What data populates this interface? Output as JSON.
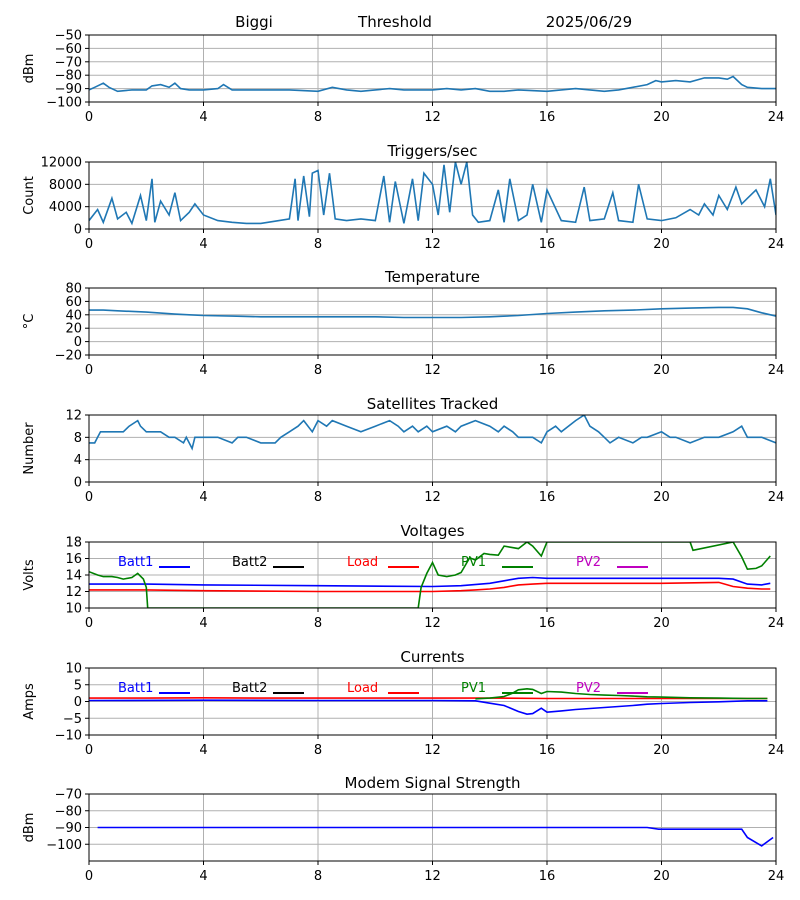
{
  "header": {
    "site": "Biggi",
    "mode": "Threshold",
    "date": "2025/06/29"
  },
  "colors": {
    "series": "#1f77b4",
    "grid": "#b0b0b0",
    "batt1": "#0000ff",
    "batt2": "#000000",
    "load": "#ff0000",
    "pv1": "#008000",
    "pv2": "#bf00bf"
  },
  "chart_data": [
    {
      "type": "line",
      "title": "",
      "xlabel": "",
      "ylabel": "dBm",
      "xlim": [
        0,
        24
      ],
      "ylim": [
        -100,
        -50
      ],
      "xticks": [
        "0",
        "4",
        "8",
        "12",
        "16",
        "20",
        "24"
      ],
      "yticks": [
        -100,
        -90,
        -80,
        -70,
        -60,
        -50
      ],
      "grid": true,
      "series": [
        {
          "color": "#1f77b4",
          "x": [
            0,
            0.2,
            0.5,
            0.7,
            1,
            1.5,
            2,
            2.2,
            2.5,
            2.8,
            3,
            3.2,
            3.5,
            4,
            4.5,
            4.7,
            5,
            6,
            7,
            8,
            8.5,
            9,
            9.5,
            10,
            10.5,
            11,
            12,
            12.5,
            13,
            13.5,
            14,
            14.5,
            15,
            16,
            17,
            17.5,
            18,
            18.5,
            19,
            19.5,
            19.8,
            20,
            20.5,
            21,
            21.5,
            22,
            22.3,
            22.5,
            22.8,
            23,
            23.5,
            24
          ],
          "y": [
            -91,
            -89,
            -86,
            -89,
            -92,
            -91,
            -91,
            -88,
            -87,
            -89,
            -86,
            -90,
            -91,
            -91,
            -90,
            -87,
            -91,
            -91,
            -91,
            -92,
            -89,
            -91,
            -92,
            -91,
            -90,
            -91,
            -91,
            -90,
            -91,
            -90,
            -92,
            -92,
            -91,
            -92,
            -90,
            -91,
            -92,
            -91,
            -89,
            -87,
            -84,
            -85,
            -84,
            -85,
            -82,
            -82,
            -83,
            -81,
            -87,
            -89,
            -90,
            -90
          ]
        }
      ]
    },
    {
      "type": "line",
      "title": "Triggers/sec",
      "xlabel": "",
      "ylabel": "Count",
      "xlim": [
        0,
        24
      ],
      "ylim": [
        0,
        12000
      ],
      "xticks": [
        "0",
        "4",
        "8",
        "12",
        "16",
        "20",
        "24"
      ],
      "yticks": [
        0,
        4000,
        8000,
        12000
      ],
      "grid": true,
      "series": [
        {
          "color": "#1f77b4",
          "x": [
            0,
            0.3,
            0.5,
            0.8,
            1,
            1.3,
            1.5,
            1.8,
            2,
            2.2,
            2.3,
            2.5,
            2.8,
            3,
            3.2,
            3.5,
            3.7,
            4,
            4.5,
            5,
            5.5,
            6,
            6.5,
            7,
            7.2,
            7.3,
            7.5,
            7.7,
            7.8,
            8,
            8.2,
            8.4,
            8.6,
            9,
            9.5,
            10,
            10.3,
            10.5,
            10.7,
            11,
            11.3,
            11.5,
            11.7,
            12,
            12.2,
            12.4,
            12.6,
            12.8,
            13,
            13.2,
            13.4,
            13.6,
            14,
            14.3,
            14.5,
            14.7,
            15,
            15.3,
            15.5,
            15.8,
            16,
            16.5,
            17,
            17.3,
            17.5,
            18,
            18.3,
            18.5,
            19,
            19.2,
            19.5,
            20,
            20.5,
            21,
            21.3,
            21.5,
            21.8,
            22,
            22.3,
            22.6,
            22.8,
            23,
            23.3,
            23.6,
            23.8,
            24
          ],
          "y": [
            1500,
            3500,
            1200,
            5500,
            1800,
            3000,
            1000,
            6000,
            1500,
            9000,
            1200,
            5000,
            2500,
            6500,
            1500,
            3000,
            4500,
            2500,
            1500,
            1200,
            1000,
            1000,
            1400,
            1800,
            9000,
            1500,
            9500,
            2200,
            10000,
            10500,
            2500,
            10000,
            1800,
            1500,
            1800,
            1500,
            9500,
            1200,
            8500,
            1000,
            9000,
            1500,
            10000,
            8000,
            2500,
            11500,
            3000,
            12000,
            8000,
            12000,
            2500,
            1200,
            1500,
            7000,
            1200,
            9000,
            1500,
            2500,
            8000,
            1200,
            7000,
            1500,
            1200,
            7500,
            1500,
            1800,
            6500,
            1500,
            1200,
            8000,
            1800,
            1500,
            2000,
            3500,
            2500,
            4500,
            2500,
            6000,
            3500,
            7500,
            4500,
            5500,
            7000,
            4000,
            9000,
            2500
          ]
        }
      ]
    },
    {
      "type": "line",
      "title": "Temperature",
      "xlabel": "",
      "ylabel": "°C",
      "xlim": [
        0,
        24
      ],
      "ylim": [
        -20,
        80
      ],
      "xticks": [
        "0",
        "4",
        "8",
        "12",
        "16",
        "20",
        "24"
      ],
      "yticks": [
        -20,
        0,
        20,
        40,
        60,
        80
      ],
      "grid": true,
      "series": [
        {
          "color": "#1f77b4",
          "x": [
            0,
            0.5,
            1,
            2,
            3,
            3.5,
            4,
            5,
            6,
            8,
            10,
            11,
            12,
            13,
            14,
            15,
            16,
            17,
            18,
            19,
            20,
            21,
            22,
            22.5,
            23,
            23.5,
            24
          ],
          "y": [
            47,
            47,
            46,
            44,
            41,
            40,
            39,
            38,
            37,
            37,
            37,
            36,
            36,
            36,
            37,
            39,
            42,
            44,
            46,
            47,
            49,
            50,
            51,
            51,
            49,
            43,
            38
          ]
        }
      ]
    },
    {
      "type": "line",
      "title": "Satellites Tracked",
      "xlabel": "",
      "ylabel": "Number",
      "xlim": [
        0,
        24
      ],
      "ylim": [
        0,
        12
      ],
      "xticks": [
        "0",
        "4",
        "8",
        "12",
        "16",
        "20",
        "24"
      ],
      "yticks": [
        0,
        4,
        8,
        12
      ],
      "grid": true,
      "series": [
        {
          "color": "#1f77b4",
          "x": [
            0,
            0.2,
            0.3,
            0.4,
            1.2,
            1.4,
            1.7,
            1.8,
            2,
            2.5,
            2.8,
            3,
            3.3,
            3.4,
            3.5,
            3.6,
            3.7,
            4.5,
            5,
            5.2,
            5.5,
            6,
            6.5,
            6.7,
            7,
            7.3,
            7.5,
            7.8,
            8,
            8.3,
            8.5,
            9,
            9.5,
            10,
            10.5,
            10.8,
            11,
            11.3,
            11.5,
            11.8,
            12,
            12.5,
            12.8,
            13,
            13.5,
            14,
            14.3,
            14.5,
            14.8,
            15,
            15.5,
            15.8,
            16,
            16.3,
            16.5,
            17,
            17.3,
            17.5,
            17.8,
            18,
            18.2,
            18.5,
            19,
            19.3,
            19.5,
            20,
            20.3,
            20.5,
            21,
            21.5,
            22,
            22.5,
            22.8,
            23,
            23.5,
            24
          ],
          "y": [
            7,
            7,
            8,
            9,
            9,
            10,
            11,
            10,
            9,
            9,
            8,
            8,
            7,
            8,
            7,
            6,
            8,
            8,
            7,
            8,
            8,
            7,
            7,
            8,
            9,
            10,
            11,
            9,
            11,
            10,
            11,
            10,
            9,
            10,
            11,
            10,
            9,
            10,
            9,
            10,
            9,
            10,
            9,
            10,
            11,
            10,
            9,
            10,
            9,
            8,
            8,
            7,
            9,
            10,
            9,
            11,
            12,
            10,
            9,
            8,
            7,
            8,
            7,
            8,
            8,
            9,
            8,
            8,
            7,
            8,
            8,
            9,
            10,
            8,
            8,
            7
          ]
        }
      ]
    },
    {
      "type": "line",
      "title": "Voltages",
      "xlabel": "",
      "ylabel": "Volts",
      "xlim": [
        0,
        24
      ],
      "ylim": [
        10,
        18
      ],
      "xticks": [
        "0",
        "4",
        "8",
        "12",
        "16",
        "20",
        "24"
      ],
      "yticks": [
        10,
        12,
        14,
        16,
        18
      ],
      "grid": true,
      "legend": "top",
      "series": [
        {
          "name": "Batt1",
          "color": "#0000ff",
          "x": [
            0,
            2,
            4,
            8,
            12,
            13,
            14,
            14.5,
            15,
            15.5,
            16,
            18,
            20,
            22,
            22.5,
            23,
            23.5,
            23.8
          ],
          "y": [
            12.9,
            12.9,
            12.8,
            12.7,
            12.6,
            12.7,
            13.0,
            13.3,
            13.6,
            13.7,
            13.6,
            13.6,
            13.6,
            13.6,
            13.5,
            12.9,
            12.8,
            13.0
          ]
        },
        {
          "name": "Batt2",
          "color": "#000000",
          "x": [],
          "y": []
        },
        {
          "name": "Load",
          "color": "#ff0000",
          "x": [
            0,
            2,
            4,
            8,
            12,
            13,
            13.5,
            14,
            14.5,
            15,
            15.5,
            16,
            18,
            20,
            22,
            22.5,
            23,
            23.5,
            23.8
          ],
          "y": [
            12.2,
            12.2,
            12.1,
            12.0,
            12.0,
            12.1,
            12.2,
            12.3,
            12.5,
            12.8,
            12.9,
            13.0,
            13.0,
            13.0,
            13.1,
            12.6,
            12.4,
            12.3,
            12.3
          ]
        },
        {
          "name": "PV1",
          "color": "#008000",
          "x": [
            0,
            0.3,
            0.5,
            0.8,
            1,
            1.2,
            1.5,
            1.7,
            1.9,
            2.0,
            2.05,
            11.5,
            11.6,
            11.8,
            12,
            12.2,
            12.5,
            12.8,
            13,
            13.3,
            13.5,
            13.8,
            14,
            14.3,
            14.5,
            15,
            15.3,
            15.5,
            15.8,
            16,
            21,
            21.1,
            22.5,
            22.8,
            23,
            23.3,
            23.5,
            23.8
          ],
          "y": [
            14.4,
            14.0,
            13.8,
            13.8,
            13.7,
            13.5,
            13.7,
            14.2,
            13.5,
            12.5,
            10,
            10,
            12.5,
            14.2,
            15.5,
            14.0,
            13.8,
            14.0,
            14.3,
            16.1,
            15.8,
            16.6,
            16.5,
            16.4,
            17.5,
            17.2,
            18,
            17.5,
            16.3,
            18,
            18,
            17,
            18,
            16.2,
            14.7,
            14.8,
            15.1,
            16.3
          ]
        },
        {
          "name": "PV2",
          "color": "#bf00bf",
          "x": [],
          "y": []
        }
      ]
    },
    {
      "type": "line",
      "title": "Currents",
      "xlabel": "",
      "ylabel": "Amps",
      "xlim": [
        0,
        24
      ],
      "ylim": [
        -10,
        10
      ],
      "xticks": [
        "0",
        "4",
        "8",
        "12",
        "16",
        "20",
        "24"
      ],
      "yticks": [
        -10,
        -5,
        0,
        5,
        10
      ],
      "grid": true,
      "legend": "top",
      "series": [
        {
          "name": "Batt1",
          "color": "#0000ff",
          "x": [
            0,
            4,
            8,
            12,
            13.5,
            14,
            14.5,
            15,
            15.3,
            15.5,
            15.8,
            16,
            16.5,
            17,
            17.5,
            18,
            19,
            19.5,
            20,
            21,
            22,
            23,
            23.7
          ],
          "y": [
            0.3,
            0.4,
            0.3,
            0.3,
            0.2,
            -0.5,
            -1.2,
            -3.0,
            -3.8,
            -3.6,
            -2.0,
            -3.2,
            -2.8,
            -2.4,
            -2.1,
            -1.8,
            -1.2,
            -0.8,
            -0.6,
            -0.3,
            -0.1,
            0.2,
            0.2
          ]
        },
        {
          "name": "Batt2",
          "color": "#000000",
          "x": [],
          "y": []
        },
        {
          "name": "Load",
          "color": "#ff0000",
          "x": [
            0,
            2,
            4,
            6,
            8,
            10,
            12,
            14,
            16,
            18,
            20,
            22,
            23.7
          ],
          "y": [
            1.0,
            1.0,
            1.1,
            1.0,
            1.0,
            1.0,
            1.0,
            1.0,
            0.9,
            0.9,
            0.9,
            0.9,
            0.9
          ]
        },
        {
          "name": "PV1",
          "color": "#008000",
          "x": [
            13.5,
            14,
            14.5,
            14.8,
            15,
            15.3,
            15.5,
            15.8,
            16,
            16.5,
            17,
            17.5,
            18,
            18.5,
            19,
            19.5,
            20,
            21,
            22,
            23,
            23.7
          ],
          "y": [
            0.8,
            1.0,
            1.5,
            2.5,
            3.5,
            3.8,
            3.6,
            2.4,
            3.0,
            2.8,
            2.4,
            2.1,
            1.9,
            1.8,
            1.6,
            1.4,
            1.3,
            1.1,
            1.0,
            0.9,
            0.9
          ]
        },
        {
          "name": "PV2",
          "color": "#bf00bf",
          "x": [],
          "y": []
        }
      ]
    },
    {
      "type": "line",
      "title": "Modem Signal Strength",
      "xlabel": "",
      "ylabel": "dBm",
      "xlim": [
        0,
        24
      ],
      "ylim": [
        -110,
        -70
      ],
      "xticks": [
        "0",
        "4",
        "8",
        "12",
        "16",
        "20",
        "24"
      ],
      "yticks": [
        -100,
        -90,
        -80,
        -70
      ],
      "grid": true,
      "series": [
        {
          "color": "#0000ff",
          "x": [
            0.3,
            5,
            10,
            15,
            19.5,
            19.9,
            20,
            22,
            22.8,
            23,
            23.5,
            23.9
          ],
          "y": [
            -90,
            -90,
            -90,
            -90,
            -90,
            -91,
            -91,
            -91,
            -91,
            -96,
            -101,
            -96
          ]
        }
      ]
    }
  ]
}
